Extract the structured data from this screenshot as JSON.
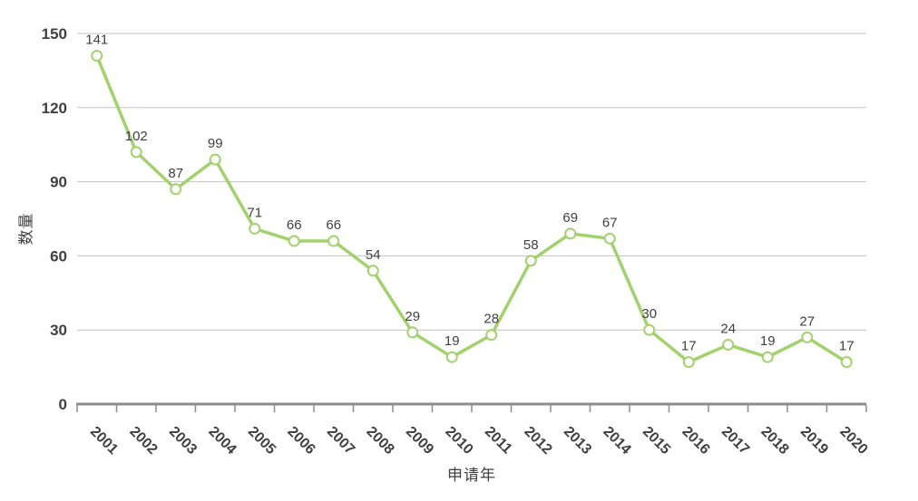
{
  "chart_data": {
    "type": "line",
    "title": "",
    "x": [
      "2001",
      "2002",
      "2003",
      "2004",
      "2005",
      "2006",
      "2007",
      "2008",
      "2009",
      "2010",
      "2011",
      "2012",
      "2013",
      "2014",
      "2015",
      "2016",
      "2017",
      "2018",
      "2019",
      "2020"
    ],
    "values": [
      141,
      102,
      87,
      99,
      71,
      66,
      66,
      54,
      29,
      19,
      28,
      58,
      69,
      67,
      30,
      17,
      24,
      19,
      27,
      17
    ],
    "xlabel": "申请年",
    "ylabel": "数量",
    "ylim": [
      0,
      150
    ],
    "yticks": [
      0,
      30,
      60,
      90,
      120,
      150
    ],
    "grid": true,
    "legend": "none",
    "marker": "hollow-circle",
    "colors": {
      "line": "#a2d16d",
      "marker_fill": "#ffffff",
      "grid": "#c3c3c3",
      "axis": "#8c8c8c",
      "text": "#404040"
    }
  }
}
